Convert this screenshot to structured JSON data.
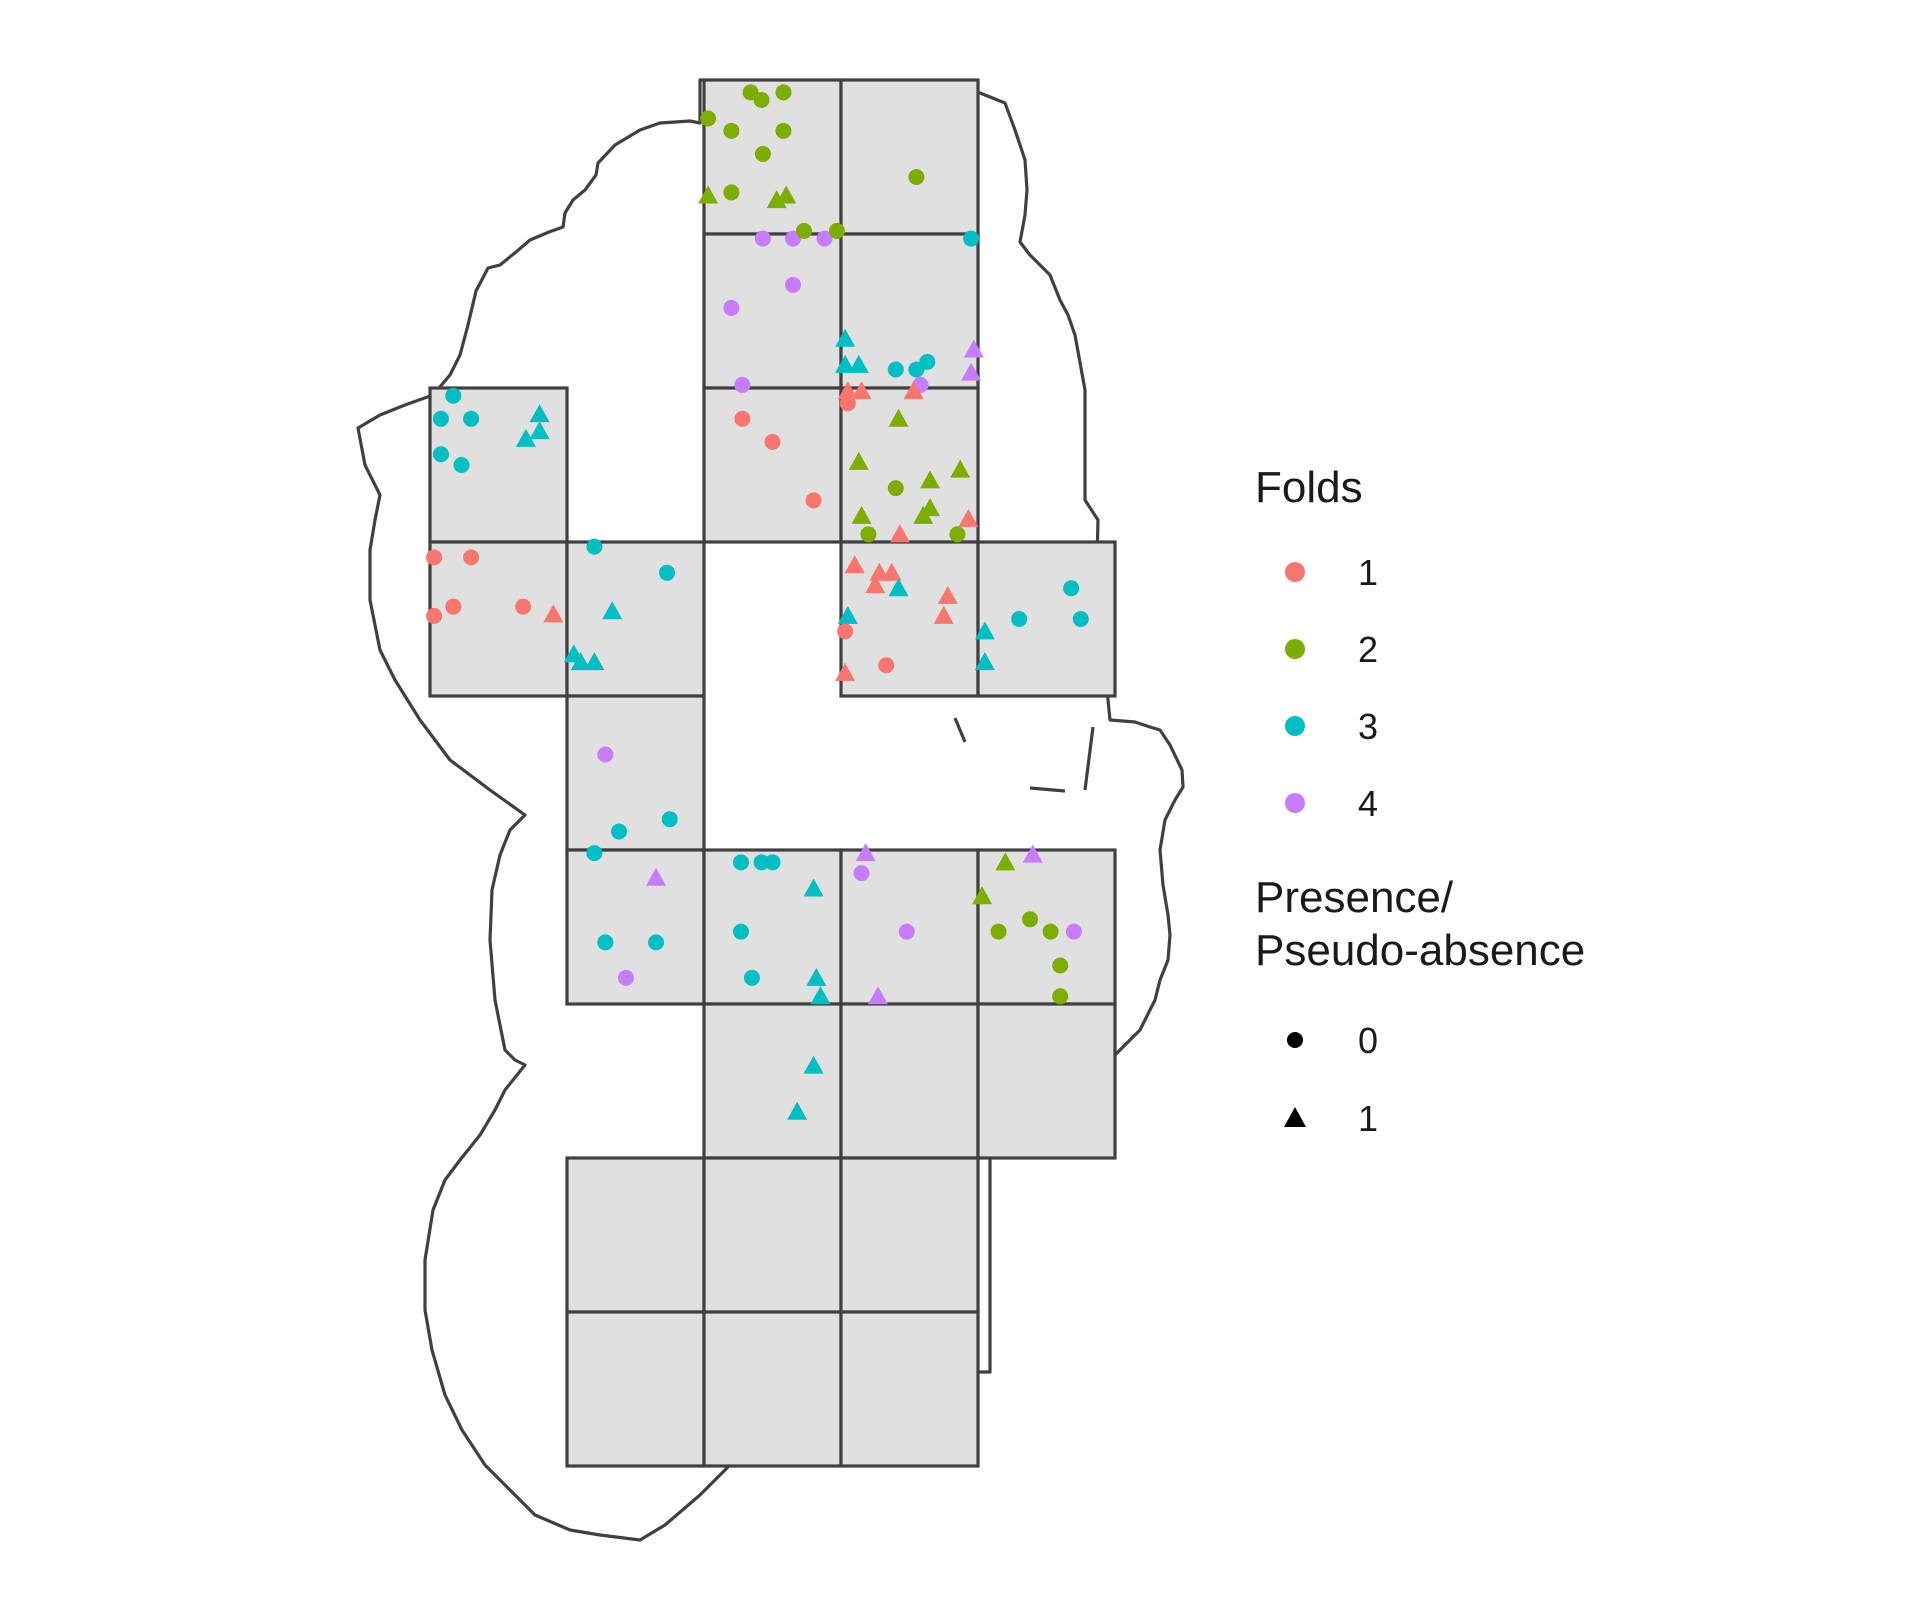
{
  "legend": {
    "folds": {
      "title": "Folds",
      "entries": [
        {
          "label": "1",
          "color": "#F8766D"
        },
        {
          "label": "2",
          "color": "#7CAE00"
        },
        {
          "label": "3",
          "color": "#00BFC4"
        },
        {
          "label": "4",
          "color": "#C77CFF"
        }
      ]
    },
    "presence": {
      "title_line1": "Presence/",
      "title_line2": "Pseudo-absence",
      "entries": [
        {
          "label": "0",
          "shape": "circle"
        },
        {
          "label": "1",
          "shape": "triangle"
        }
      ]
    }
  },
  "colors": {
    "block_fill": "#e0e0e0",
    "outline": "#404040"
  },
  "chart_data": {
    "type": "scatter",
    "description_units": "grid coordinates: column/row indices of the spatial block grid (x right, y down)",
    "blocks": [
      [
        2,
        0
      ],
      [
        3,
        0
      ],
      [
        2,
        1
      ],
      [
        3,
        1
      ],
      [
        0,
        2
      ],
      [
        2,
        2
      ],
      [
        3,
        2
      ],
      [
        0,
        3
      ],
      [
        1,
        3
      ],
      [
        3,
        3
      ],
      [
        4,
        3
      ],
      [
        1,
        4
      ],
      [
        1,
        5
      ],
      [
        2,
        5
      ],
      [
        3,
        5
      ],
      [
        4,
        5
      ],
      [
        2,
        6
      ],
      [
        3,
        6
      ],
      [
        4,
        6
      ],
      [
        1,
        7
      ],
      [
        2,
        7
      ],
      [
        3,
        7
      ],
      [
        1,
        8
      ],
      [
        2,
        8
      ],
      [
        3,
        8
      ]
    ],
    "fold_colors": {
      "1": "#F8766D",
      "2": "#7CAE00",
      "3": "#00BFC4",
      "4": "#C77CFF"
    },
    "points": [
      {
        "fold": 2,
        "presence": 0,
        "x": 2.34,
        "y": 0.08
      },
      {
        "fold": 2,
        "presence": 0,
        "x": 2.42,
        "y": 0.13
      },
      {
        "fold": 2,
        "presence": 0,
        "x": 2.58,
        "y": 0.08
      },
      {
        "fold": 2,
        "presence": 0,
        "x": 2.03,
        "y": 0.25
      },
      {
        "fold": 2,
        "presence": 0,
        "x": 2.2,
        "y": 0.33
      },
      {
        "fold": 2,
        "presence": 0,
        "x": 2.58,
        "y": 0.33
      },
      {
        "fold": 2,
        "presence": 0,
        "x": 2.43,
        "y": 0.48
      },
      {
        "fold": 2,
        "presence": 0,
        "x": 2.2,
        "y": 0.73
      },
      {
        "fold": 2,
        "presence": 0,
        "x": 3.55,
        "y": 0.63
      },
      {
        "fold": 2,
        "presence": 1,
        "x": 2.53,
        "y": 0.78
      },
      {
        "fold": 2,
        "presence": 1,
        "x": 2.6,
        "y": 0.75
      },
      {
        "fold": 2,
        "presence": 1,
        "x": 3.02,
        "y": 0.75
      },
      {
        "fold": 3,
        "presence": 0,
        "x": 3.4,
        "y": 0.88
      },
      {
        "fold": 3,
        "presence": 0,
        "x": 3.55,
        "y": 0.88
      },
      {
        "fold": 3,
        "presence": 0,
        "x": 3.95,
        "y": 1.03
      },
      {
        "fold": 3,
        "presence": 0,
        "x": 3.63,
        "y": 1.83
      },
      {
        "fold": 3,
        "presence": 1,
        "x": 3.02,
        "y": 1.68
      },
      {
        "fold": 3,
        "presence": 1,
        "x": 3.02,
        "y": 1.85
      },
      {
        "fold": 3,
        "presence": 1,
        "x": 3.13,
        "y": 1.85
      },
      {
        "fold": 4,
        "presence": 0,
        "x": 2.28,
        "y": 0.98
      },
      {
        "fold": 4,
        "presence": 0,
        "x": 2.43,
        "y": 1.03
      },
      {
        "fold": 4,
        "presence": 0,
        "x": 2.65,
        "y": 1.03
      },
      {
        "fold": 4,
        "presence": 0,
        "x": 2.88,
        "y": 1.03
      },
      {
        "fold": 4,
        "presence": 0,
        "x": 2.65,
        "y": 1.33
      },
      {
        "fold": 4,
        "presence": 0,
        "x": 2.2,
        "y": 1.48
      },
      {
        "fold": 4,
        "presence": 0,
        "x": 2.58,
        "y": 1.98
      },
      {
        "fold": 4,
        "presence": 1,
        "x": 2.95,
        "y": 1.9
      },
      {
        "fold": 4,
        "presence": 1,
        "x": 2.98,
        "y": 1.75
      },
      {
        "fold": 3,
        "presence": 0,
        "x": 0.17,
        "y": 0.05
      },
      {
        "fold": 3,
        "presence": 0,
        "x": 0.08,
        "y": 0.2
      },
      {
        "fold": 3,
        "presence": 0,
        "x": 0.3,
        "y": 0.2
      },
      {
        "fold": 3,
        "presence": 0,
        "x": 0.08,
        "y": 0.43
      },
      {
        "fold": 3,
        "presence": 0,
        "x": 0.23,
        "y": 0.5
      },
      {
        "fold": 3,
        "presence": 1,
        "x": 0.8,
        "y": 0.17
      },
      {
        "fold": 3,
        "presence": 1,
        "x": 0.8,
        "y": 0.28
      },
      {
        "fold": 3,
        "presence": 1,
        "x": 0.7,
        "y": 0.33
      },
      {
        "fold": 1,
        "presence": 0,
        "x": 2.28,
        "y": 0.2
      },
      {
        "fold": 1,
        "presence": 0,
        "x": 2.5,
        "y": 0.35
      },
      {
        "fold": 1,
        "presence": 0,
        "x": 2.8,
        "y": 0.73
      },
      {
        "fold": 1,
        "presence": 0,
        "x": 3.05,
        "y": 1.1
      },
      {
        "fold": 1,
        "presence": 1,
        "x": 2.93,
        "y": 0.85
      },
      {
        "fold": 1,
        "presence": 1,
        "x": 3.05,
        "y": 1.0
      },
      {
        "fold": 1,
        "presence": 1,
        "x": 3.15,
        "y": 1.0
      },
      {
        "fold": 1,
        "presence": 1,
        "x": 3.53,
        "y": 1.0
      },
      {
        "fold": 1,
        "presence": 1,
        "x": 3.43,
        "y": 0.95
      },
      {
        "fold": 2,
        "presence": 1,
        "x": 3.42,
        "y": 0.2
      },
      {
        "fold": 2,
        "presence": 1,
        "x": 3.13,
        "y": 0.48
      },
      {
        "fold": 2,
        "presence": 1,
        "x": 3.65,
        "y": 0.6
      },
      {
        "fold": 2,
        "presence": 1,
        "x": 3.87,
        "y": 0.53
      },
      {
        "fold": 2,
        "presence": 1,
        "x": 3.15,
        "y": 0.83
      },
      {
        "fold": 2,
        "presence": 1,
        "x": 3.6,
        "y": 0.83
      },
      {
        "fold": 2,
        "presence": 1,
        "x": 3.65,
        "y": 0.78
      },
      {
        "fold": 2,
        "presence": 0,
        "x": 3.4,
        "y": 0.65
      },
      {
        "fold": 2,
        "presence": 0,
        "x": 3.85,
        "y": 0.95
      },
      {
        "fold": 2,
        "presence": 0,
        "x": 3.2,
        "y": 0.95
      },
      {
        "fold": 1,
        "presence": 0,
        "x": 0.03,
        "y": 0.1
      },
      {
        "fold": 1,
        "presence": 0,
        "x": 0.3,
        "y": 0.1
      },
      {
        "fold": 1,
        "presence": 0,
        "x": 0.03,
        "y": 0.48
      },
      {
        "fold": 1,
        "presence": 0,
        "x": 0.17,
        "y": 0.42
      },
      {
        "fold": 1,
        "presence": 0,
        "x": 0.68,
        "y": 0.42
      },
      {
        "fold": 1,
        "presence": 1,
        "x": 0.9,
        "y": 0.47
      },
      {
        "fold": 3,
        "presence": 0,
        "x": 0.2,
        "y": 0.03
      },
      {
        "fold": 3,
        "presence": 0,
        "x": 0.73,
        "y": 0.2
      },
      {
        "fold": 3,
        "presence": 1,
        "x": 0.33,
        "y": 0.45
      },
      {
        "fold": 3,
        "presence": 1,
        "x": 0.05,
        "y": 0.73
      },
      {
        "fold": 3,
        "presence": 1,
        "x": 0.1,
        "y": 0.78
      },
      {
        "fold": 3,
        "presence": 1,
        "x": 0.2,
        "y": 0.78
      },
      {
        "fold": 1,
        "presence": 0,
        "x": 0.03,
        "y": 0.58
      },
      {
        "fold": 1,
        "presence": 0,
        "x": 0.33,
        "y": 0.8
      },
      {
        "fold": 1,
        "presence": 1,
        "x": 0.1,
        "y": 0.15
      },
      {
        "fold": 1,
        "presence": 1,
        "x": 0.28,
        "y": 0.2
      },
      {
        "fold": 1,
        "presence": 1,
        "x": 0.37,
        "y": 0.2
      },
      {
        "fold": 1,
        "presence": 1,
        "x": 0.25,
        "y": 0.28
      },
      {
        "fold": 1,
        "presence": 1,
        "x": 0.78,
        "y": 0.35
      },
      {
        "fold": 1,
        "presence": 1,
        "x": 0.75,
        "y": 0.48
      },
      {
        "fold": 1,
        "presence": 1,
        "x": 0.02,
        "y": 0.85
      },
      {
        "fold": 3,
        "presence": 1,
        "x": 0.42,
        "y": 0.3
      },
      {
        "fold": 3,
        "presence": 1,
        "x": 0.05,
        "y": 0.48
      },
      {
        "fold": 3,
        "presence": 1,
        "x": 0.05,
        "y": 0.58
      },
      {
        "fold": 3,
        "presence": 1,
        "x": 0.05,
        "y": 0.78
      },
      {
        "fold": 3,
        "presence": 0,
        "x": 0.3,
        "y": 0.5
      },
      {
        "fold": 3,
        "presence": 0,
        "x": 0.68,
        "y": 0.3
      },
      {
        "fold": 3,
        "presence": 0,
        "x": 0.75,
        "y": 0.5
      },
      {
        "fold": 3,
        "presence": 0,
        "x": 0.75,
        "y": 0.8
      },
      {
        "fold": 3,
        "presence": 0,
        "x": 0.38,
        "y": 0.88
      },
      {
        "fold": 4,
        "presence": 0,
        "x": 0.28,
        "y": 0.38
      },
      {
        "fold": 4,
        "presence": 0,
        "x": 0.43,
        "y": 0.83
      },
      {
        "fold": 4,
        "presence": 1,
        "x": 0.65,
        "y": 0.18
      },
      {
        "fold": 3,
        "presence": 0,
        "x": 0.2,
        "y": 0.0
      },
      {
        "fold": 3,
        "presence": 0,
        "x": 0.28,
        "y": 0.6
      },
      {
        "fold": 3,
        "presence": 0,
        "x": 0.65,
        "y": 0.6
      },
      {
        "fold": 3,
        "presence": 1,
        "x": 0.82,
        "y": 0.83
      },
      {
        "fold": 3,
        "presence": 1,
        "x": 0.85,
        "y": 0.95
      },
      {
        "fold": 3,
        "presence": 0,
        "x": 0.27,
        "y": 0.08
      },
      {
        "fold": 3,
        "presence": 0,
        "x": 0.42,
        "y": 0.08
      },
      {
        "fold": 3,
        "presence": 0,
        "x": 0.5,
        "y": 0.08
      },
      {
        "fold": 3,
        "presence": 0,
        "x": 0.27,
        "y": 0.53
      },
      {
        "fold": 3,
        "presence": 0,
        "x": 0.35,
        "y": 0.83
      },
      {
        "fold": 3,
        "presence": 1,
        "x": 0.8,
        "y": 0.25
      },
      {
        "fold": 3,
        "presence": 1,
        "x": 0.8,
        "y": 0.4
      },
      {
        "fold": 3,
        "presence": 1,
        "x": 0.68,
        "y": 0.7
      },
      {
        "fold": 4,
        "presence": 1,
        "x": 0.27,
        "y": 0.95
      },
      {
        "fold": 4,
        "presence": 1,
        "x": 0.18,
        "y": 1.0
      },
      {
        "fold": 4,
        "presence": 0,
        "x": 0.15,
        "y": 0.15
      },
      {
        "fold": 4,
        "presence": 0,
        "x": 0.48,
        "y": 0.53
      },
      {
        "fold": 4,
        "presence": 0,
        "x": 0.7,
        "y": 0.53
      },
      {
        "fold": 4,
        "presence": 1,
        "x": 0.4,
        "y": 0.03
      },
      {
        "fold": 2,
        "presence": 1,
        "x": 0.2,
        "y": 0.08
      },
      {
        "fold": 2,
        "presence": 1,
        "x": 0.0,
        "y": 0.3
      },
      {
        "fold": 2,
        "presence": 0,
        "x": 0.15,
        "y": 0.53
      },
      {
        "fold": 2,
        "presence": 0,
        "x": 0.38,
        "y": 0.45
      },
      {
        "fold": 2,
        "presence": 0,
        "x": 0.53,
        "y": 0.53
      },
      {
        "fold": 2,
        "presence": 0,
        "x": 0.6,
        "y": 0.75
      },
      {
        "fold": 2,
        "presence": 0,
        "x": 0.6,
        "y": 0.95
      },
      {
        "fold": 2,
        "presence": 0,
        "x": 0.73,
        "y": 0.98
      },
      {
        "fold": 2,
        "presence": 0,
        "x": 0.98,
        "y": 0.98
      }
    ]
  }
}
